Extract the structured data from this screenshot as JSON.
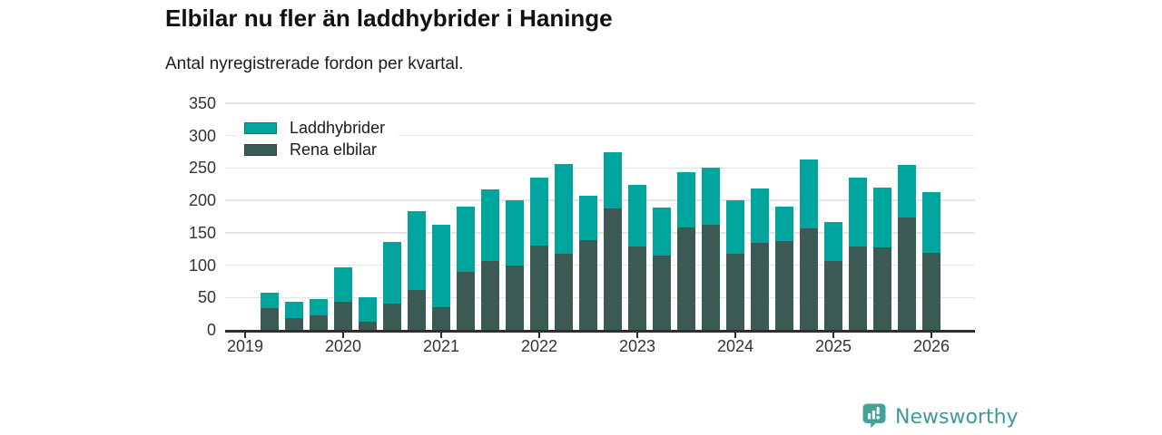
{
  "header": {
    "title": "Elbilar nu fler än laddhybrider i Haninge",
    "subtitle": "Antal nyregistrerade fordon per kvartal."
  },
  "brand": {
    "name": "Newsworthy",
    "color": "#3e9b94",
    "icon": "newsworthy-pin-barchart-icon"
  },
  "colors": {
    "laddhybrider": "#00a69d",
    "rena_elbilar": "#3b5a54",
    "gridline": "#e4e4e4",
    "axis": "#2e2e2e",
    "tick_text": "#333333"
  },
  "chart_data": {
    "type": "bar",
    "stacked": true,
    "title": "Elbilar nu fler än laddhybrider i Haninge",
    "subtitle": "Antal nyregistrerade fordon per kvartal.",
    "xlabel": "",
    "ylabel": "",
    "ylim": [
      0,
      350
    ],
    "grid": "horizontal",
    "legend_position": "top-left-inside",
    "y_ticks": [
      0,
      50,
      100,
      150,
      200,
      250,
      300,
      350
    ],
    "x_tick_labels": [
      "2019",
      "2020",
      "2021",
      "2022",
      "2023",
      "2024",
      "2025",
      "2026"
    ],
    "legend_items": [
      {
        "label": "Laddhybrider",
        "color": "#00a69d"
      },
      {
        "label": "Rena elbilar",
        "color": "#3b5a54"
      }
    ],
    "categories": [
      "2019 Q2",
      "2019 Q3",
      "2019 Q4",
      "2020 Q1",
      "2020 Q2",
      "2020 Q3",
      "2020 Q4",
      "2021 Q1",
      "2021 Q2",
      "2021 Q3",
      "2021 Q4",
      "2022 Q1",
      "2022 Q2",
      "2022 Q3",
      "2022 Q4",
      "2023 Q1",
      "2023 Q2",
      "2023 Q3",
      "2023 Q4",
      "2024 Q1",
      "2024 Q2",
      "2024 Q3",
      "2024 Q4",
      "2025 Q1",
      "2025 Q2",
      "2025 Q3",
      "2025 Q4",
      "2026 Q1"
    ],
    "series": [
      {
        "name": "Rena elbilar",
        "color": "#3b5a54",
        "values": [
          33,
          18,
          23,
          44,
          12,
          41,
          62,
          35,
          90,
          107,
          100,
          130,
          118,
          139,
          187,
          129,
          115,
          158,
          162,
          118,
          134,
          137,
          157,
          106,
          129,
          128,
          174,
          119
        ]
      },
      {
        "name": "Laddhybrider",
        "color": "#00a69d",
        "values": [
          24,
          25,
          24,
          53,
          38,
          95,
          121,
          127,
          101,
          110,
          100,
          105,
          138,
          68,
          88,
          95,
          74,
          85,
          89,
          82,
          85,
          54,
          106,
          60,
          106,
          92,
          81,
          94
        ]
      }
    ]
  }
}
